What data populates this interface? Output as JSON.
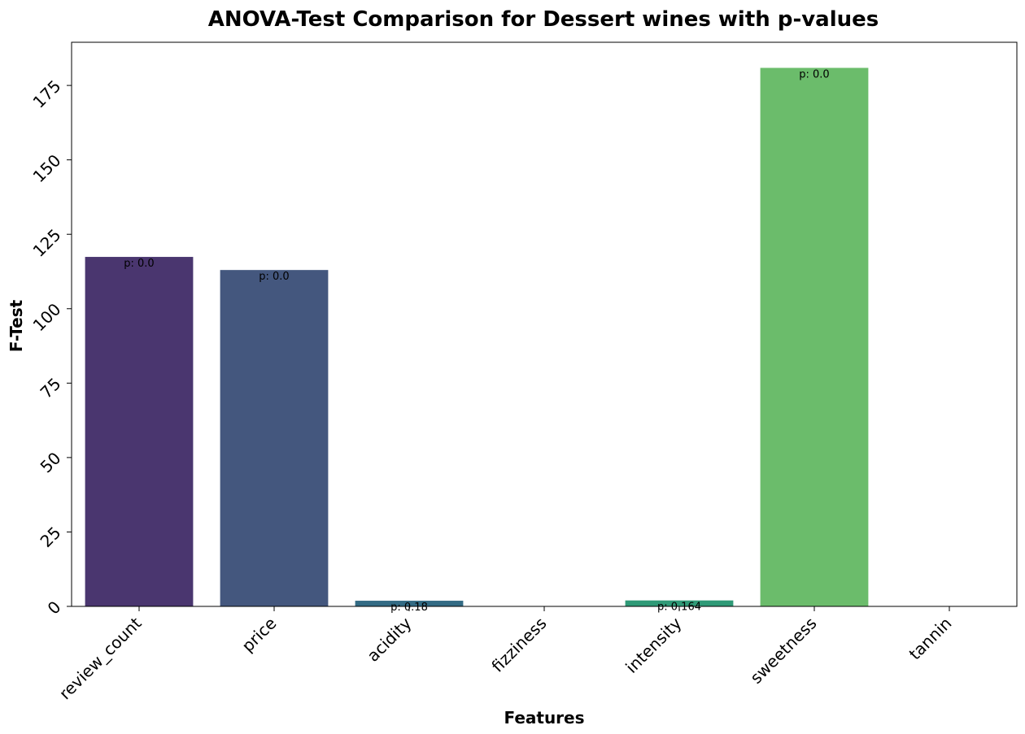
{
  "chart_data": {
    "type": "bar",
    "title": "ANOVA-Test Comparison for Dessert wines with p-values",
    "xlabel": "Features",
    "ylabel": "F-Test",
    "categories": [
      "review_count",
      "price",
      "acidity",
      "fizziness",
      "intensity",
      "sweetness",
      "tannin"
    ],
    "values": [
      117.4,
      113.0,
      1.9,
      0,
      2.0,
      180.9,
      0
    ],
    "bar_labels": [
      "p: 0.0",
      "p: 0.0",
      "p: 0.18",
      "",
      "p: 0.164",
      "p: 0.0",
      ""
    ],
    "colors": [
      "#4a366f",
      "#44577e",
      "#336b84",
      "#2a7e84",
      "#2f9a77",
      "#6bbc6b",
      "#6bbc6b"
    ],
    "ylim": [
      0,
      189.5
    ],
    "yticks": [
      0,
      25,
      50,
      75,
      100,
      125,
      150,
      175
    ],
    "grid": false,
    "legend": "none"
  }
}
